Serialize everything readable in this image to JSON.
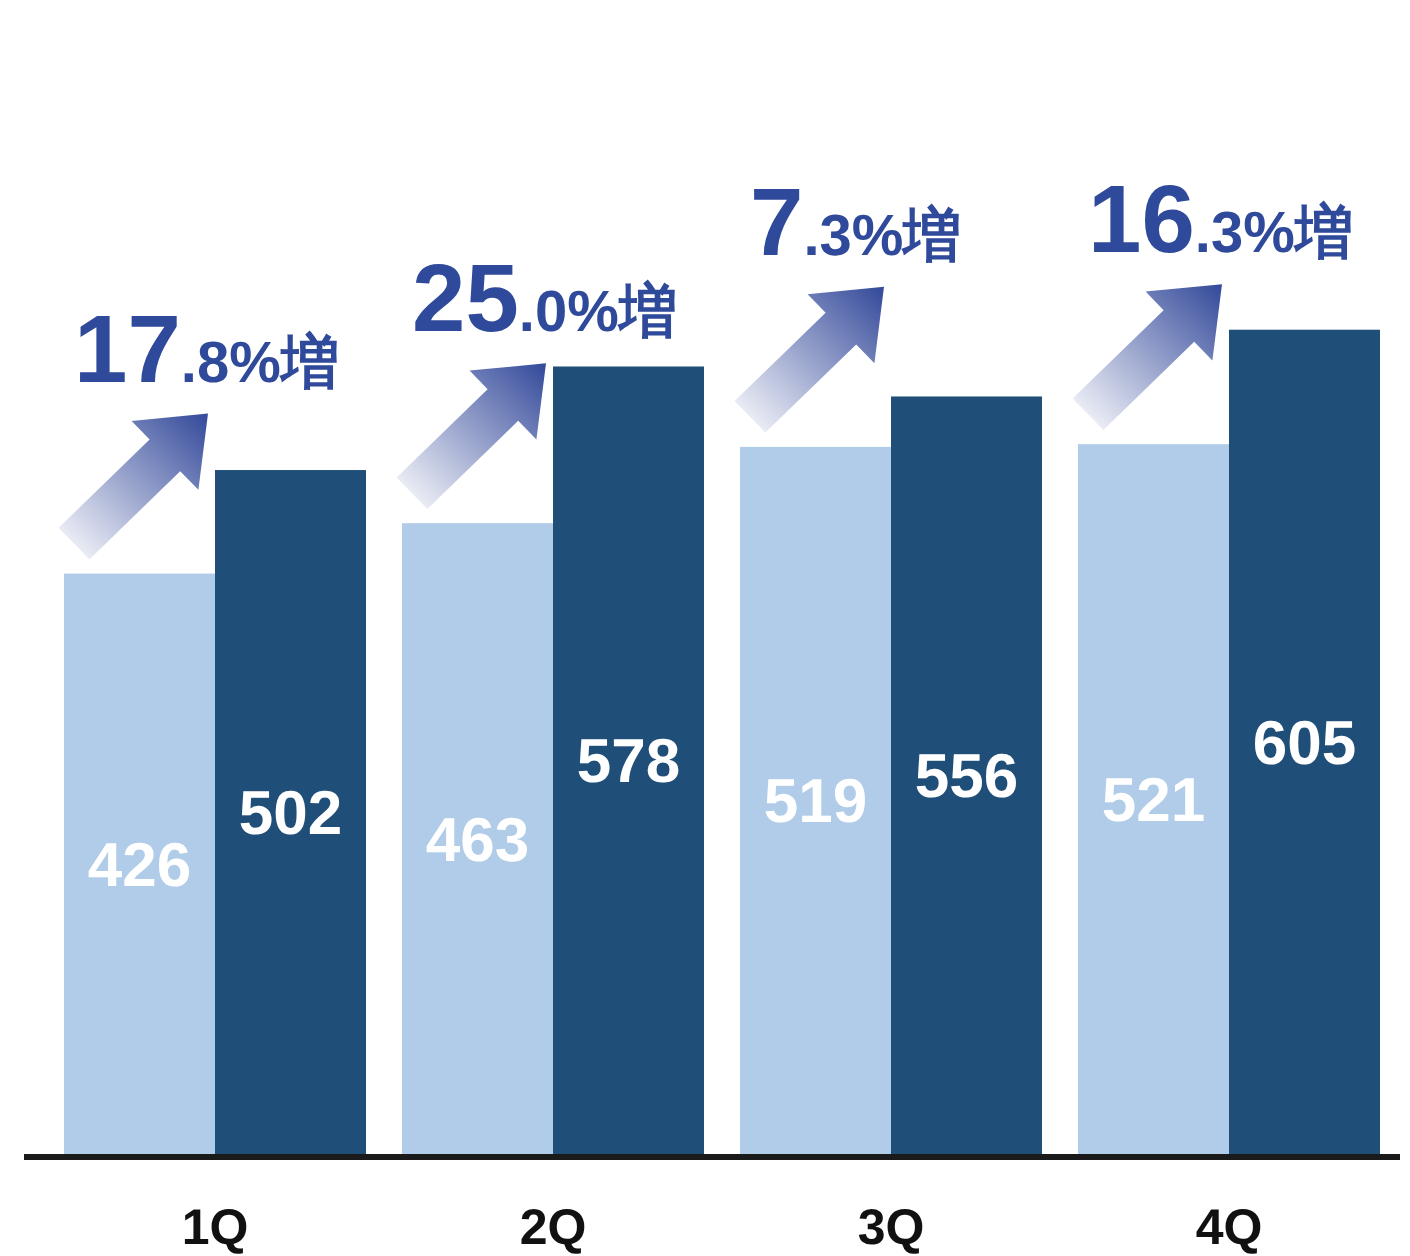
{
  "chart_data": {
    "type": "bar",
    "categories": [
      "1Q",
      "2Q",
      "3Q",
      "4Q"
    ],
    "series": [
      {
        "color": "#b0cce8",
        "values": [
          426,
          463,
          519,
          521
        ]
      },
      {
        "color": "#1f4e79",
        "values": [
          502,
          578,
          556,
          605
        ]
      }
    ],
    "data_labels": true,
    "annotations": [
      "17.8%増",
      "25.0%増",
      "7.3%増",
      "16.3%増"
    ]
  }
}
